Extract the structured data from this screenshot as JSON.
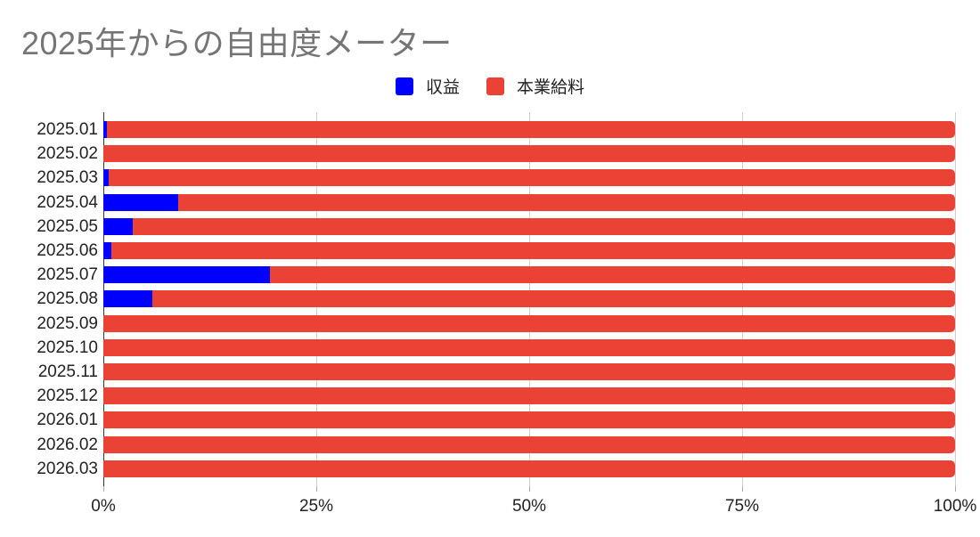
{
  "title": "2025年からの自由度メーター",
  "legend": [
    {
      "label": "収益",
      "color": "#0000ff"
    },
    {
      "label": "本業給料",
      "color": "#ea4335"
    }
  ],
  "x_ticks": [
    "0%",
    "25%",
    "50%",
    "75%",
    "100%"
  ],
  "chart_data": {
    "type": "bar",
    "orientation": "horizontal",
    "stacked": "percent",
    "title": "2025年からの自由度メーター",
    "xlabel": "",
    "ylabel": "",
    "xlim": [
      0,
      100
    ],
    "x_tick_labels": [
      "0%",
      "25%",
      "50%",
      "75%",
      "100%"
    ],
    "grid": true,
    "legend_position": "top",
    "categories": [
      "2025.01",
      "2025.02",
      "2025.03",
      "2025.04",
      "2025.05",
      "2025.06",
      "2025.07",
      "2025.08",
      "2025.09",
      "2025.10",
      "2025.11",
      "2025.12",
      "2026.01",
      "2026.02",
      "2026.03"
    ],
    "series": [
      {
        "name": "収益",
        "color": "#0000ff",
        "values": [
          0.4,
          0,
          0.6,
          8.8,
          3.5,
          0.9,
          19.6,
          5.8,
          0,
          0,
          0,
          0,
          0,
          0,
          0
        ]
      },
      {
        "name": "本業給料",
        "color": "#ea4335",
        "values": [
          99.6,
          100,
          99.4,
          91.2,
          96.5,
          99.1,
          80.4,
          94.2,
          100,
          100,
          100,
          100,
          100,
          100,
          100
        ]
      }
    ]
  }
}
